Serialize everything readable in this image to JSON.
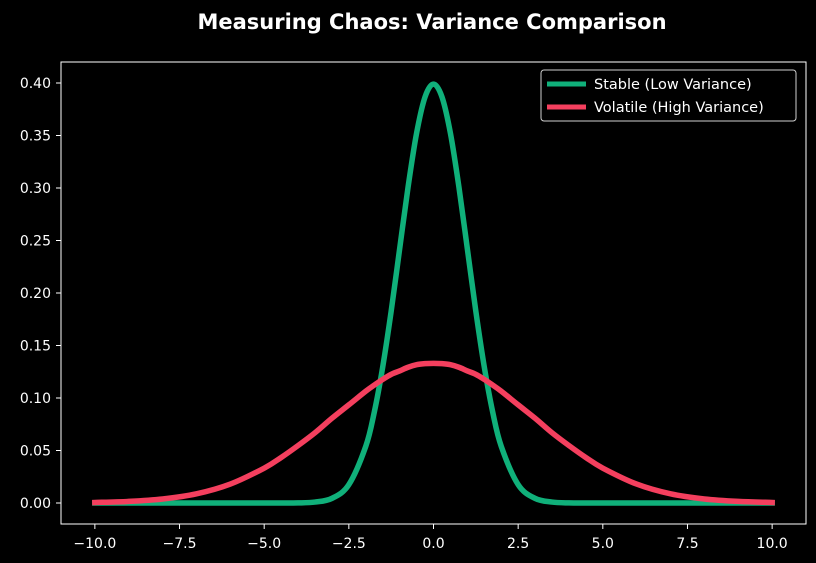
{
  "chart_data": {
    "type": "line",
    "title": "Measuring Chaos: Variance Comparison",
    "xlabel": "",
    "ylabel": "",
    "xlim": [
      -11.0,
      11.0
    ],
    "ylim": [
      -0.02,
      0.42
    ],
    "x_ticks": [
      -10.0,
      -7.5,
      -5.0,
      -2.5,
      0.0,
      2.5,
      5.0,
      7.5,
      10.0
    ],
    "x_tick_labels": [
      "−10.0",
      "−7.5",
      "−5.0",
      "−2.5",
      "0.0",
      "2.5",
      "5.0",
      "7.5",
      "10.0"
    ],
    "y_ticks": [
      0.0,
      0.05,
      0.1,
      0.15,
      0.2,
      0.25,
      0.3,
      0.35,
      0.4
    ],
    "y_tick_labels": [
      "0.00",
      "0.05",
      "0.10",
      "0.15",
      "0.20",
      "0.25",
      "0.30",
      "0.35",
      "0.40"
    ],
    "grid": false,
    "legend_position": "top-right",
    "background_color": "#000000",
    "axis_color": "#ffffff",
    "series": [
      {
        "name": "Stable (Low Variance)",
        "color": "#10b07a",
        "x": [
          -10,
          -9,
          -8,
          -7,
          -6,
          -5,
          -4.5,
          -4,
          -3.5,
          -3,
          -2.5,
          -2,
          -1.75,
          -1.5,
          -1.25,
          -1,
          -0.75,
          -0.5,
          -0.25,
          0,
          0.25,
          0.5,
          0.75,
          1,
          1.25,
          1.5,
          1.75,
          2,
          2.5,
          3,
          3.5,
          4,
          4.5,
          5,
          6,
          7,
          8,
          9,
          10
        ],
        "values": [
          0.0,
          0.0,
          0.0,
          0.0,
          0.0,
          0.0,
          0.0,
          0.0001,
          0.0009,
          0.0044,
          0.0175,
          0.054,
          0.0863,
          0.1295,
          0.1826,
          0.242,
          0.3011,
          0.3521,
          0.3867,
          0.3989,
          0.3867,
          0.3521,
          0.3011,
          0.242,
          0.1826,
          0.1295,
          0.0863,
          0.054,
          0.0175,
          0.0044,
          0.0009,
          0.0001,
          0.0,
          0.0,
          0.0,
          0.0,
          0.0,
          0.0,
          0.0
        ]
      },
      {
        "name": "Volatile (High Variance)",
        "color": "#f43f5e",
        "x": [
          -10,
          -9,
          -8,
          -7,
          -6,
          -5,
          -4.5,
          -4,
          -3.5,
          -3,
          -2.5,
          -2,
          -1.75,
          -1.5,
          -1.25,
          -1,
          -0.75,
          -0.5,
          -0.25,
          0,
          0.25,
          0.5,
          0.75,
          1,
          1.25,
          1.5,
          1.75,
          2,
          2.5,
          3,
          3.5,
          4,
          4.5,
          5,
          6,
          7,
          8,
          9,
          10
        ],
        "values": [
          0.0005,
          0.0015,
          0.0038,
          0.0087,
          0.018,
          0.0332,
          0.0433,
          0.0547,
          0.0669,
          0.0807,
          0.0935,
          0.1065,
          0.1123,
          0.1177,
          0.1225,
          0.1258,
          0.1293,
          0.1317,
          0.1327,
          0.133,
          0.1327,
          0.1317,
          0.1293,
          0.1258,
          0.1225,
          0.1177,
          0.1123,
          0.1065,
          0.0935,
          0.0807,
          0.0669,
          0.0547,
          0.0433,
          0.0332,
          0.018,
          0.0087,
          0.0038,
          0.0015,
          0.0005
        ]
      }
    ]
  }
}
